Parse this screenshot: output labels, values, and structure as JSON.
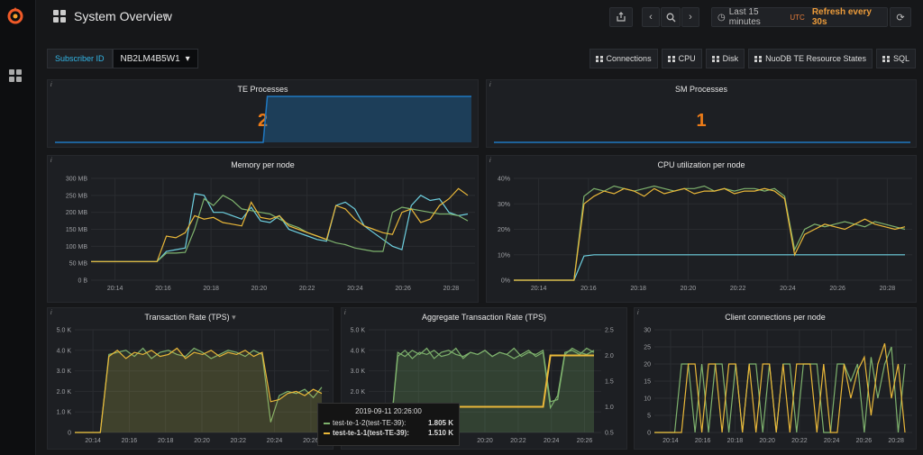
{
  "header": {
    "title": "System Overview",
    "time_range": "Last 15 minutes",
    "timezone": "UTC",
    "refresh": "Refresh every 30s"
  },
  "variables": {
    "label": "Subscriber ID",
    "value": "NB2LM4B5W1"
  },
  "links": [
    {
      "label": "Connections"
    },
    {
      "label": "CPU"
    },
    {
      "label": "Disk"
    },
    {
      "label": "NuoDB TE Resource States"
    },
    {
      "label": "SQL"
    }
  ],
  "colors": {
    "green": "#7eb26d",
    "yellow": "#eab839",
    "cyan": "#6ed0e0",
    "blue": "#1f78c1",
    "orange": "#eb7b18"
  },
  "panels": {
    "te": {
      "title": "TE Processes",
      "value": "2",
      "spark": [
        [
          0,
          0
        ],
        [
          0.5,
          0
        ],
        [
          0.51,
          1
        ],
        [
          1,
          1
        ]
      ]
    },
    "sm": {
      "title": "SM Processes",
      "value": "1",
      "spark": [
        [
          0,
          0
        ],
        [
          1,
          0
        ]
      ]
    },
    "memory": {
      "title": "Memory per node",
      "yticks": [
        "0 B",
        "50 MB",
        "100 MB",
        "150 MB",
        "200 MB",
        "250 MB",
        "300 MB"
      ],
      "xticks": [
        "20:14",
        "20:16",
        "20:18",
        "20:20",
        "20:22",
        "20:24",
        "20:26",
        "20:28"
      ]
    },
    "cpu": {
      "title": "CPU utilization per node",
      "yticks": [
        "0%",
        "10%",
        "20%",
        "30%",
        "40%"
      ],
      "xticks": [
        "20:14",
        "20:16",
        "20:18",
        "20:20",
        "20:22",
        "20:24",
        "20:26",
        "20:28"
      ]
    },
    "tps": {
      "title": "Transaction Rate (TPS)",
      "yticks": [
        "0",
        "1.0 K",
        "2.0 K",
        "3.0 K",
        "4.0 K",
        "5.0 K"
      ],
      "xticks": [
        "20:14",
        "20:16",
        "20:18",
        "20:20",
        "20:22",
        "20:24",
        "20:26"
      ]
    },
    "agg": {
      "title": "Aggregate Transaction Rate (TPS)",
      "yticks": [
        "0",
        "1.0 K",
        "2.0 K",
        "3.0 K",
        "4.0 K",
        "5.0 K"
      ],
      "yticks_right": [
        "0.5",
        "1.0",
        "1.5",
        "2.0",
        "2.5"
      ],
      "xticks": [
        "20:14",
        "20:16",
        "20:18",
        "20:20",
        "20:22",
        "20:24",
        "20:26"
      ]
    },
    "clients": {
      "title": "Client connections per node",
      "yticks": [
        "0",
        "5",
        "10",
        "15",
        "20",
        "25",
        "30"
      ],
      "xticks": [
        "20:14",
        "20:16",
        "20:18",
        "20:20",
        "20:22",
        "20:24",
        "20:26",
        "20:28"
      ]
    }
  },
  "chart_data": [
    {
      "type": "line",
      "title": "Memory per node",
      "ylim": [
        0,
        300
      ],
      "x": [
        0,
        1,
        2,
        3,
        4,
        5,
        6,
        7,
        8,
        9,
        10,
        11,
        12,
        13,
        14,
        15,
        16,
        17,
        18,
        19,
        20,
        21,
        22,
        23,
        24,
        25,
        26,
        27,
        28,
        29,
        30,
        31,
        32,
        33,
        34,
        35,
        36,
        37,
        38,
        39,
        40
      ],
      "series": [
        {
          "values": [
            55,
            55,
            55,
            55,
            55,
            55,
            55,
            55,
            85,
            90,
            95,
            255,
            250,
            200,
            200,
            190,
            180,
            215,
            175,
            170,
            190,
            150,
            140,
            130,
            120,
            115,
            220,
            230,
            210,
            160,
            140,
            120,
            100,
            90,
            220,
            250,
            235,
            240,
            200,
            190,
            195
          ]
        },
        {
          "values": [
            55,
            55,
            55,
            55,
            55,
            55,
            55,
            55,
            80,
            80,
            82,
            150,
            240,
            220,
            250,
            235,
            210,
            205,
            200,
            195,
            180,
            165,
            155,
            140,
            130,
            120,
            110,
            105,
            95,
            90,
            85,
            85,
            200,
            215,
            210,
            205,
            200,
            195,
            195,
            190,
            175
          ]
        },
        {
          "values": [
            55,
            55,
            55,
            55,
            55,
            55,
            55,
            55,
            130,
            125,
            140,
            190,
            180,
            185,
            170,
            165,
            160,
            230,
            185,
            180,
            190,
            160,
            150,
            140,
            130,
            120,
            220,
            210,
            180,
            160,
            150,
            140,
            135,
            200,
            210,
            170,
            180,
            220,
            240,
            270,
            250
          ]
        }
      ]
    },
    {
      "type": "line",
      "title": "CPU utilization per node",
      "ylim": [
        0,
        40
      ],
      "series": [
        {
          "values": [
            0,
            0,
            0,
            0,
            0,
            0,
            0,
            9.5,
            10,
            10,
            10,
            10,
            10,
            10,
            10,
            10,
            10,
            10,
            10,
            10,
            10,
            10,
            10,
            10,
            10,
            10,
            10,
            10,
            10,
            10,
            10,
            10,
            10,
            10,
            10,
            10,
            10,
            10,
            10,
            10
          ]
        },
        {
          "values": [
            0,
            0,
            0,
            0,
            0,
            0,
            0,
            33,
            36,
            35,
            37,
            36,
            35,
            36,
            37,
            36,
            35,
            36,
            36,
            37,
            35,
            36,
            35,
            36,
            36,
            35,
            36,
            33,
            12,
            20,
            22,
            21,
            22,
            23,
            22,
            21,
            23,
            22,
            21,
            20
          ]
        },
        {
          "values": [
            0,
            0,
            0,
            0,
            0,
            0,
            0,
            30,
            33,
            35,
            34,
            36,
            35,
            33,
            36,
            34,
            35,
            36,
            34,
            35,
            35,
            36,
            34,
            35,
            35,
            36,
            35,
            32,
            10,
            18,
            20,
            22,
            21,
            20,
            22,
            24,
            22,
            21,
            20,
            21
          ]
        }
      ]
    },
    {
      "type": "area",
      "title": "Transaction Rate (TPS)",
      "ylim": [
        0,
        5000
      ],
      "series": [
        {
          "values": [
            0,
            0,
            0,
            0,
            3800,
            3900,
            4000,
            3700,
            4100,
            3600,
            3900,
            4000,
            3800,
            3700,
            4100,
            3900,
            3600,
            3800,
            4000,
            3900,
            3700,
            4000,
            3800,
            500,
            1800,
            2000,
            1900,
            2100,
            1700,
            2200
          ]
        },
        {
          "values": [
            0,
            0,
            0,
            0,
            3700,
            4000,
            3600,
            3900,
            3800,
            4000,
            3700,
            3800,
            4100,
            3600,
            3900,
            3800,
            4000,
            3700,
            3900,
            3800,
            4000,
            3700,
            3900,
            1500,
            1600,
            1900,
            2000,
            1800,
            2100,
            1900
          ]
        }
      ]
    },
    {
      "type": "area",
      "title": "Aggregate Transaction Rate (TPS)",
      "ylim": [
        0,
        5000
      ],
      "ylim_right": [
        0.5,
        2.5
      ],
      "series": [
        {
          "values": [
            0,
            0,
            0,
            0,
            3900,
            3700,
            4000,
            3800,
            4100,
            3600,
            3900,
            4000,
            3800,
            3700,
            3900,
            3800,
            4000,
            3700,
            3900,
            3800,
            3600,
            3800,
            4000,
            3700,
            3900,
            1200,
            1800,
            3900,
            4000,
            3800,
            4100,
            3900
          ]
        },
        {
          "values": [
            0,
            0,
            0,
            0,
            3700,
            4000,
            3600,
            3900,
            3800,
            4000,
            3700,
            3800,
            4100,
            3600,
            3900,
            3800,
            4000,
            3700,
            3900,
            3800,
            4100,
            3700,
            3900,
            3800,
            4000,
            1500,
            1600,
            3800,
            4100,
            3900,
            3800,
            4000
          ]
        },
        {
          "values": [
            1,
            1,
            1,
            1,
            1,
            1,
            1,
            1,
            1,
            1,
            1,
            1,
            1,
            1,
            1,
            1,
            1,
            1,
            1,
            1,
            1,
            1,
            1,
            1,
            1,
            2,
            2,
            2,
            2,
            2,
            2,
            2
          ],
          "axis": "right"
        }
      ]
    },
    {
      "type": "line",
      "title": "Client connections per node",
      "ylim": [
        0,
        30
      ],
      "series": [
        {
          "values": [
            0,
            0,
            0,
            0,
            20,
            20,
            0,
            20,
            0,
            20,
            20,
            0,
            20,
            0,
            20,
            20,
            0,
            20,
            0,
            20,
            20,
            0,
            20,
            20,
            20,
            0,
            0,
            20,
            20,
            15,
            20,
            0,
            22,
            10,
            20,
            25,
            0,
            20
          ]
        },
        {
          "values": [
            0,
            0,
            0,
            0,
            0,
            20,
            20,
            0,
            20,
            20,
            0,
            20,
            20,
            0,
            20,
            0,
            20,
            20,
            0,
            20,
            0,
            20,
            20,
            20,
            0,
            20,
            0,
            0,
            20,
            10,
            18,
            22,
            5,
            20,
            26,
            10,
            20,
            0
          ]
        }
      ]
    }
  ],
  "tooltip": {
    "time": "2019-09-11 20:26:00",
    "rows": [
      {
        "name": "test-te-1-2(test-TE-39):",
        "value": "1.805 K"
      },
      {
        "name": "test-te-1-1(test-TE-39):",
        "value": "1.510 K"
      }
    ]
  }
}
